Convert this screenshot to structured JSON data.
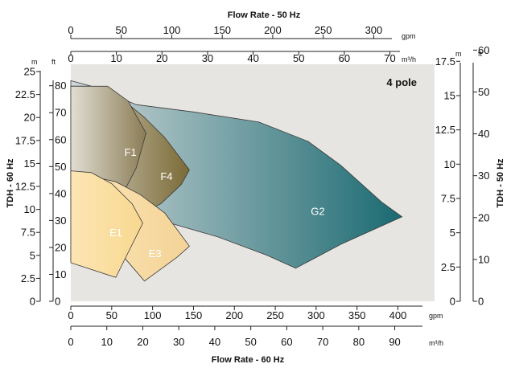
{
  "chart_data": {
    "type": "area",
    "title": "Flow Rate - 50 Hz",
    "xlabel": "Flow Rate - 60 Hz",
    "ylabel_left": "TDH - 60 Hz",
    "ylabel_right": "TDH - 50 Hz",
    "annotation": "4 pole",
    "grid": false,
    "x_bottom_gpm": {
      "unit": "gpm",
      "ticks": [
        "0",
        "50",
        "100",
        "150",
        "200",
        "250",
        "300",
        "350",
        "400"
      ],
      "range": [
        0,
        430
      ]
    },
    "x_bottom_m3h": {
      "unit": "m³/h",
      "ticks": [
        "0",
        "10",
        "20",
        "30",
        "40",
        "50",
        "60",
        "70",
        "80",
        "90"
      ],
      "range": [
        0,
        97.7
      ]
    },
    "x_top_gpm": {
      "unit": "gpm",
      "ticks": [
        "0",
        "50",
        "100",
        "150",
        "200",
        "250",
        "300"
      ],
      "range": [
        0,
        318
      ]
    },
    "x_top_m3h": {
      "unit": "m³/h",
      "ticks": [
        "0",
        "10",
        "20",
        "30",
        "40",
        "50",
        "60",
        "70"
      ],
      "range": [
        0,
        72.2
      ]
    },
    "y_left_m": {
      "unit": "m",
      "ticks": [
        "0",
        "2.5",
        "5",
        "7.5",
        "10",
        "12.5",
        "15",
        "17.5",
        "20",
        "22.5",
        "25"
      ],
      "range": [
        0,
        25
      ]
    },
    "y_left_ft": {
      "unit": "ft",
      "ticks": [
        "0",
        "10",
        "20",
        "30",
        "40",
        "50",
        "60",
        "70",
        "80"
      ],
      "range": [
        0,
        82
      ]
    },
    "y_right_m": {
      "unit": "m",
      "ticks": [
        "0",
        "2.5",
        "5",
        "7.5",
        "10",
        "12.5",
        "15",
        "17.5"
      ],
      "range": [
        0,
        17.4
      ]
    },
    "y_right_ft": {
      "unit": "ft",
      "ticks": [
        "0",
        "10",
        "20",
        "30",
        "40",
        "50",
        "60"
      ],
      "range": [
        0,
        57
      ]
    },
    "series": [
      {
        "name": "G2",
        "color": "#1b6a72",
        "label_at": [
          302,
          9.4
        ],
        "x": [
          0,
          25,
          80,
          150,
          230,
          290,
          330,
          380,
          405,
          330,
          275,
          240,
          180,
          110,
          40,
          0
        ],
        "y": [
          24.0,
          23.4,
          21.4,
          20.6,
          19.5,
          17.4,
          14.8,
          10.8,
          9.2,
          6.2,
          3.6,
          5.0,
          7.0,
          8.8,
          10.2,
          10.8
        ]
      },
      {
        "name": "F4",
        "color": "#7a6a35",
        "label_at": [
          117,
          13.2
        ],
        "x": [
          0,
          25,
          60,
          90,
          115,
          145,
          135,
          110,
          90,
          60,
          0
        ],
        "y": [
          23.4,
          23.4,
          22.2,
          20.0,
          17.8,
          14.3,
          12.7,
          10.6,
          9.8,
          11.0,
          13.2
        ]
      },
      {
        "name": "F1",
        "color": "#8a7c55",
        "label_at": [
          73,
          15.8
        ],
        "x": [
          0,
          45,
          70,
          92,
          80,
          57,
          0
        ],
        "y": [
          23.4,
          23.4,
          21.8,
          18.3,
          14.5,
          10.6,
          13.2
        ]
      },
      {
        "name": "E3",
        "color": "#f3d396",
        "label_at": [
          103,
          4.8
        ],
        "x": [
          0,
          25,
          55,
          85,
          115,
          145,
          130,
          90,
          65,
          0
        ],
        "y": [
          14.2,
          13.6,
          13.0,
          11.6,
          9.6,
          6.0,
          4.8,
          2.2,
          4.8,
          4.4
        ]
      },
      {
        "name": "E1",
        "color": "#f8d890",
        "label_at": [
          55,
          7.1
        ],
        "x": [
          0,
          25,
          50,
          75,
          88,
          55,
          0
        ],
        "y": [
          14.2,
          14.0,
          12.8,
          10.6,
          8.5,
          2.6,
          4.2
        ]
      }
    ]
  }
}
